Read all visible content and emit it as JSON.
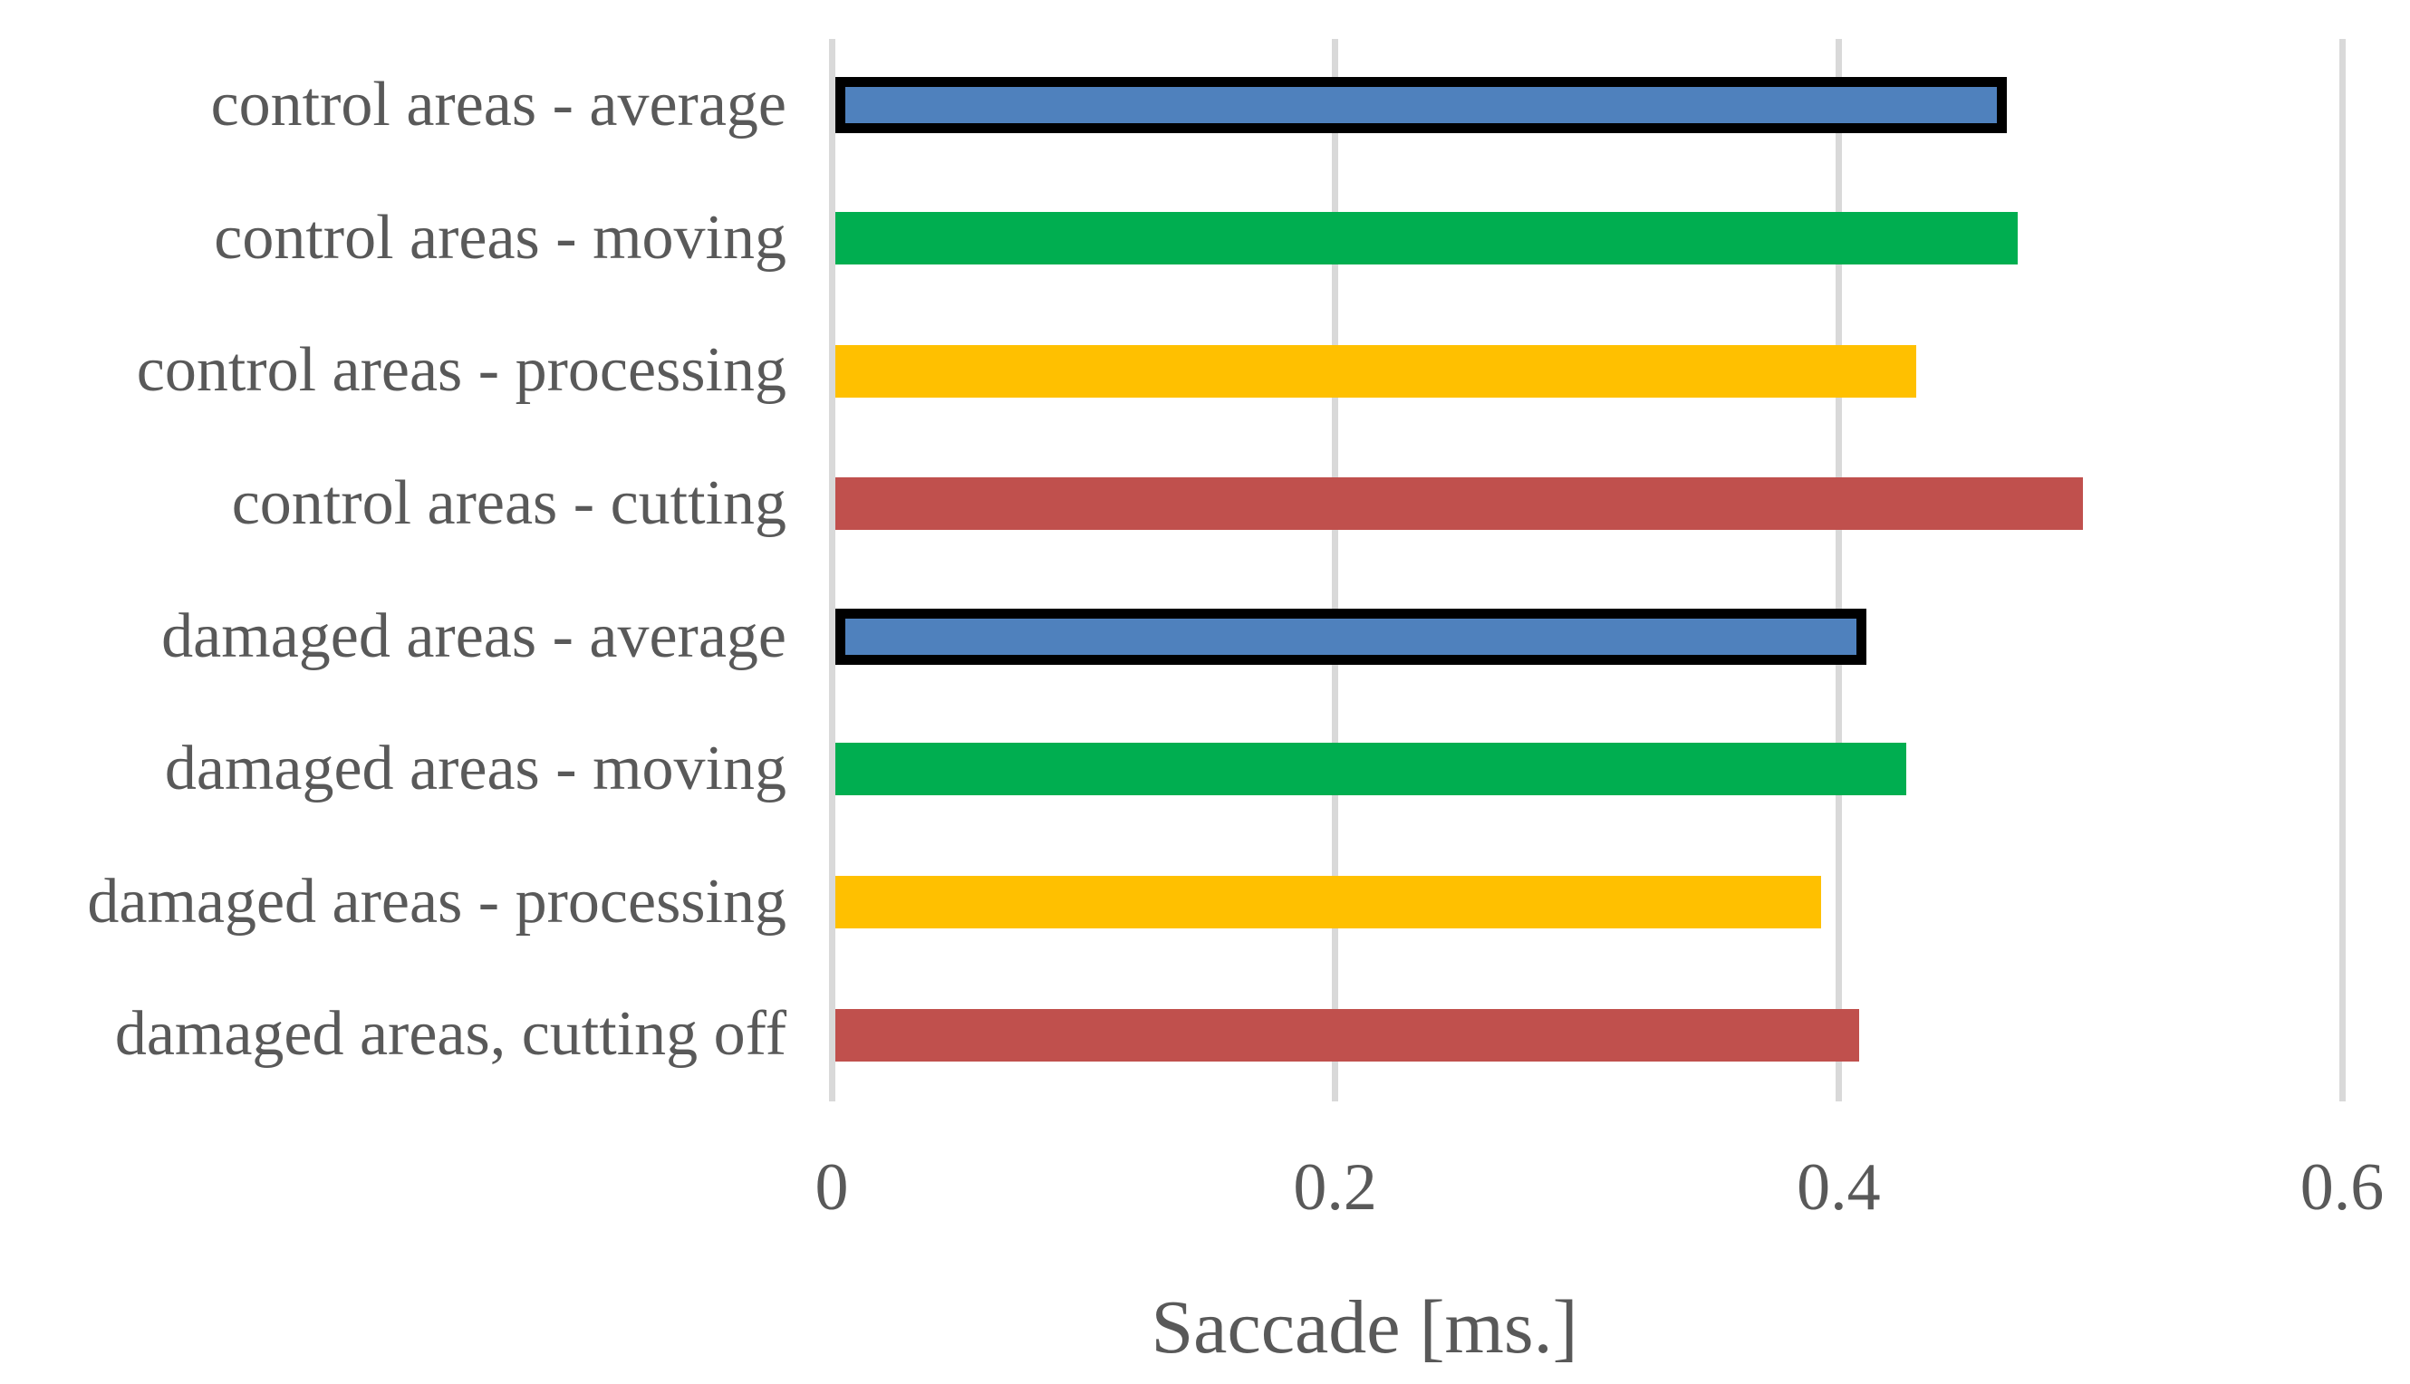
{
  "chart_data": {
    "type": "bar",
    "orientation": "horizontal",
    "title": "",
    "xlabel": "Saccade [ms.]",
    "ylabel": "",
    "categories": [
      "control areas - average",
      "control areas - moving",
      "control areas - processing",
      "control areas - cutting",
      "damaged areas - average",
      "damaged areas - moving",
      "damaged areas - processing",
      "damaged areas, cutting off"
    ],
    "values": [
      0.467,
      0.471,
      0.431,
      0.497,
      0.411,
      0.427,
      0.393,
      0.408
    ],
    "bar_colors": [
      "#4F81BD",
      "#00AE50",
      "#FFC000",
      "#C0504D",
      "#4F81BD",
      "#00AE50",
      "#FFC000",
      "#C0504D"
    ],
    "bar_outlined": [
      true,
      false,
      false,
      false,
      true,
      false,
      false,
      false
    ],
    "outline_color": "#000000",
    "x_ticks": [
      0,
      0.2,
      0.4,
      0.6
    ],
    "x_tick_labels": [
      "0",
      "0.2",
      "0.4",
      "0.6"
    ],
    "xlim": [
      0,
      0.63
    ],
    "grid": true,
    "legend_position": "none",
    "colors": {
      "gridline": "#D9D9D9",
      "text": "#595959",
      "background": "#FFFFFF"
    }
  }
}
